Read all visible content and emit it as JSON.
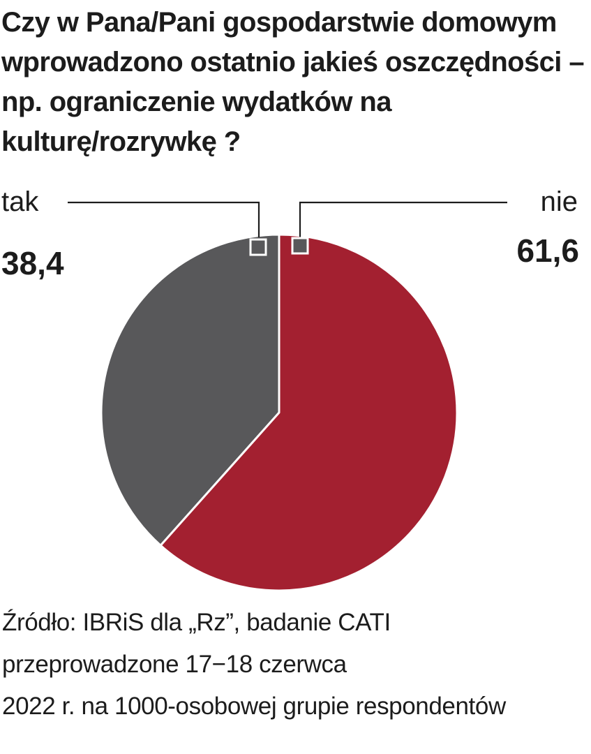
{
  "title": "Czy w Pana/Pani gospodarstwie domowym wprowadzono ostatnio jakieś oszczędności – np. ograniczenie wydatków na kulturę/rozrywkę ?",
  "chart_data": {
    "type": "pie",
    "title": "Czy w Pana/Pani gospodarstwie domowym wprowadzono ostatnio jakieś oszczędności – np. ograniczenie wydatków na kulturę/rozrywkę ?",
    "slices": [
      {
        "label": "tak",
        "value": 38.4,
        "display": "38,4",
        "color": "#58585a"
      },
      {
        "label": "nie",
        "value": 61.6,
        "display": "61,6",
        "color": "#a32030"
      }
    ],
    "legend": "callouts at top-left and top-right"
  },
  "source": {
    "lines": [
      "Źródło: IBRiS dla „Rz”, badanie CATI",
      "przeprowadzone 17−18 czerwca",
      "2022 r. na 1000-osobowej grupie respondentów"
    ]
  }
}
